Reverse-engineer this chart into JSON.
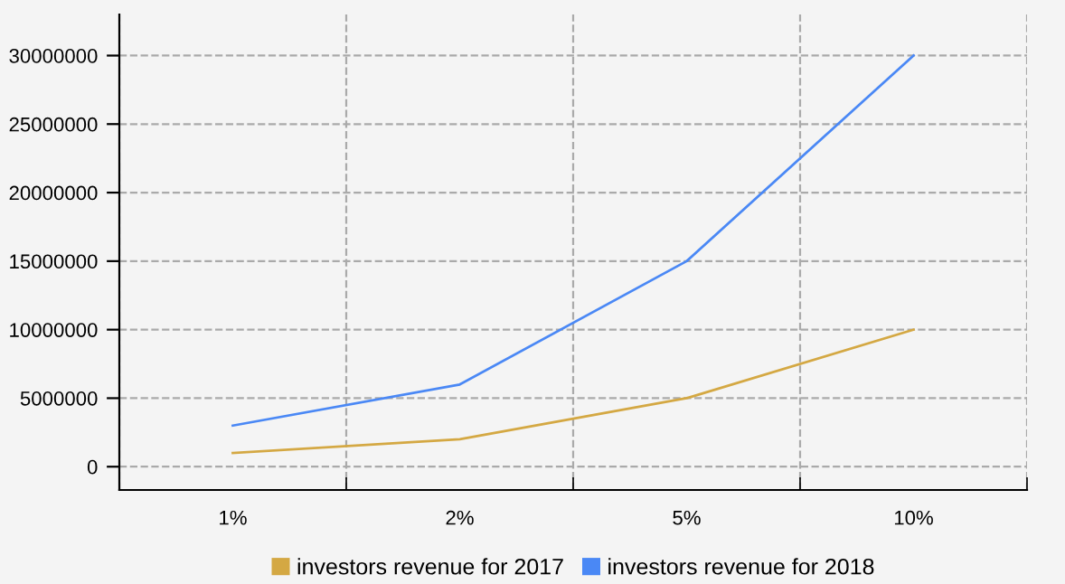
{
  "chart_data": {
    "type": "line",
    "categories": [
      "1%",
      "2%",
      "5%",
      "10%"
    ],
    "series": [
      {
        "name": "investors revenue for 2017",
        "color": "#d4a843",
        "values": [
          1000000,
          2000000,
          5000000,
          10000000
        ]
      },
      {
        "name": "investors revenue for 2018",
        "color": "#4a88f5",
        "values": [
          3000000,
          6000000,
          15000000,
          30000000
        ]
      }
    ],
    "ylim": [
      -1700000,
      33000000
    ],
    "yticks": [
      0,
      5000000,
      10000000,
      15000000,
      20000000,
      25000000,
      30000000
    ],
    "grid": true,
    "legend": "bottom",
    "marker": "none",
    "line_style": "solid"
  }
}
